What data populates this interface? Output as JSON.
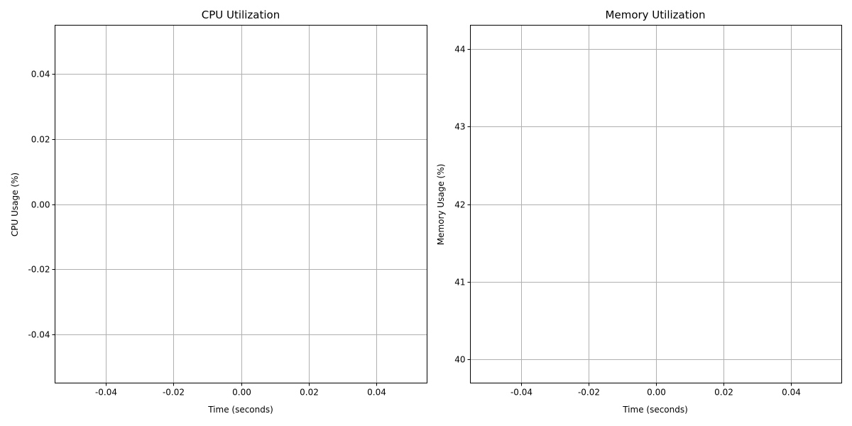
{
  "chart_data": [
    {
      "type": "line",
      "title": "CPU Utilization",
      "xlabel": "Time (seconds)",
      "ylabel": "CPU Usage (%)",
      "xlim": [
        -0.055,
        0.055
      ],
      "ylim": [
        -0.055,
        0.055
      ],
      "xticks": [
        -0.04,
        -0.02,
        0.0,
        0.02,
        0.04
      ],
      "xtick_labels": [
        "-0.04",
        "-0.02",
        "0.00",
        "0.02",
        "0.04"
      ],
      "yticks": [
        -0.04,
        -0.02,
        0.0,
        0.02,
        0.04
      ],
      "ytick_labels": [
        "-0.04",
        "-0.02",
        "0.00",
        "0.02",
        "0.04"
      ],
      "grid": true,
      "series": []
    },
    {
      "type": "line",
      "title": "Memory Utilization",
      "xlabel": "Time (seconds)",
      "ylabel": "Memory Usage (%)",
      "xlim": [
        -0.055,
        0.055
      ],
      "ylim": [
        39.69,
        44.31
      ],
      "xticks": [
        -0.04,
        -0.02,
        0.0,
        0.02,
        0.04
      ],
      "xtick_labels": [
        "-0.04",
        "-0.02",
        "0.00",
        "0.02",
        "0.04"
      ],
      "yticks": [
        40,
        41,
        42,
        43,
        44
      ],
      "ytick_labels": [
        "40",
        "41",
        "42",
        "43",
        "44"
      ],
      "grid": true,
      "series": []
    }
  ],
  "colors": {
    "grid": "#b0b0b0",
    "axes": "#000000",
    "background": "#ffffff"
  }
}
